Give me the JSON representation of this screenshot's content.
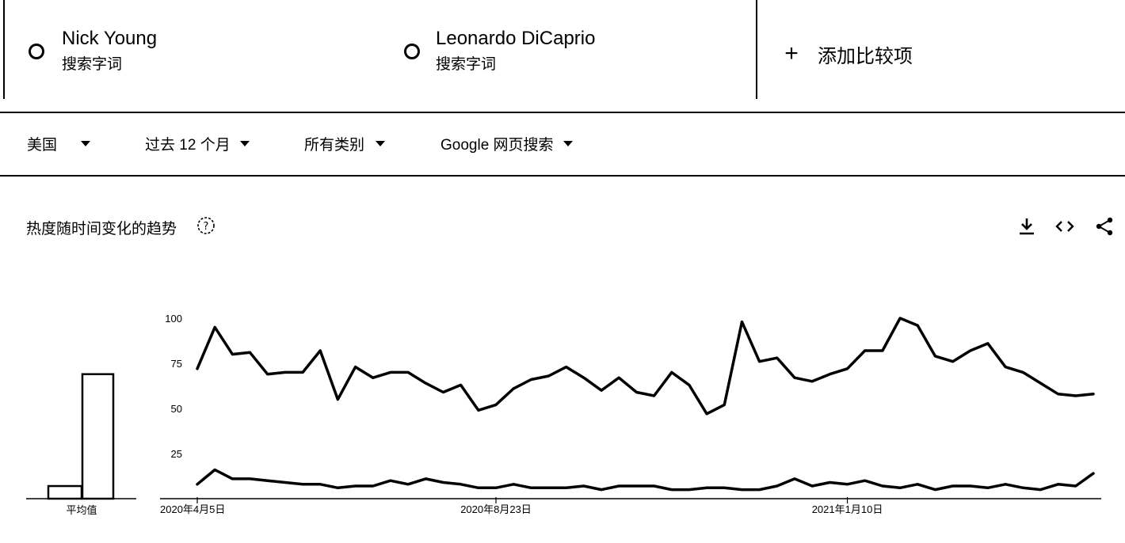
{
  "terms": [
    {
      "name": "Nick Young",
      "type": "搜索字词"
    },
    {
      "name": "Leonardo DiCaprio",
      "type": "搜索字词"
    }
  ],
  "add_compare": {
    "label": "添加比较项"
  },
  "filters": [
    {
      "label": "美国"
    },
    {
      "label": "过去 12 个月"
    },
    {
      "label": "所有类别"
    },
    {
      "label": "Google 网页搜索"
    }
  ],
  "section": {
    "title": "热度随时间变化的趋势",
    "icons": [
      "help-icon",
      "download-icon",
      "embed-icon",
      "share-icon"
    ]
  },
  "colors": {
    "line": "#000000",
    "background": "#ffffff"
  },
  "chart_data": {
    "type": "line",
    "title": "",
    "ylim": [
      0,
      100
    ],
    "y_ticks": [
      25,
      50,
      75,
      100
    ],
    "y_tick_labels": [
      "25",
      "50",
      "75",
      "100"
    ],
    "x_tick_labels": [
      {
        "index": 0,
        "label": "2020年4月5日"
      },
      {
        "index": 17,
        "label": "2020年8月23日"
      },
      {
        "index": 37,
        "label": "2021年1月10日"
      }
    ],
    "average_label": "平均值",
    "averages": [
      {
        "series": "Nick Young",
        "value": 7
      },
      {
        "series": "Leonardo DiCaprio",
        "value": 69
      }
    ],
    "series": [
      {
        "name": "Leonardo DiCaprio",
        "values": [
          72,
          95,
          80,
          81,
          69,
          70,
          70,
          82,
          55,
          73,
          67,
          70,
          70,
          64,
          59,
          63,
          49,
          52,
          61,
          66,
          68,
          73,
          67,
          60,
          67,
          59,
          57,
          70,
          63,
          47,
          52,
          98,
          76,
          78,
          67,
          65,
          69,
          72,
          82,
          82,
          100,
          96,
          79,
          76,
          82,
          86,
          73,
          70,
          64,
          58,
          57,
          58
        ]
      },
      {
        "name": "Nick Young",
        "values": [
          8,
          16,
          11,
          11,
          10,
          9,
          8,
          8,
          6,
          7,
          7,
          10,
          8,
          11,
          9,
          8,
          6,
          6,
          8,
          6,
          6,
          6,
          7,
          5,
          7,
          7,
          7,
          5,
          5,
          6,
          6,
          5,
          5,
          7,
          11,
          7,
          9,
          8,
          10,
          7,
          6,
          8,
          5,
          7,
          7,
          6,
          8,
          6,
          5,
          8,
          7,
          14
        ]
      }
    ]
  }
}
